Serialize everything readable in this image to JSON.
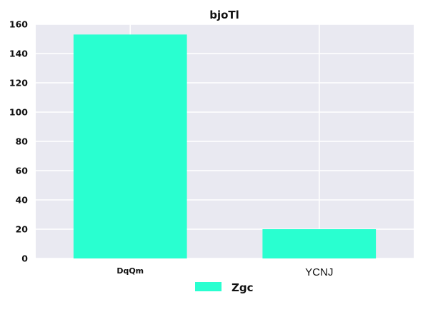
{
  "chart_data": {
    "type": "bar",
    "title": "bjoTl",
    "categories": [
      "DqQm",
      "YCNJ"
    ],
    "series": [
      {
        "name": "Zgc",
        "values": [
          153,
          20
        ]
      }
    ],
    "ylim": [
      0,
      160
    ],
    "yticks": [
      0,
      20,
      40,
      60,
      80,
      100,
      120,
      140,
      160
    ],
    "xlabel": "",
    "ylabel": "",
    "grid": true,
    "legend": "bottom-center",
    "colors": {
      "bar": "#29ffd0",
      "plot_background": "#e9e9f1",
      "grid": "#ffffff"
    }
  }
}
